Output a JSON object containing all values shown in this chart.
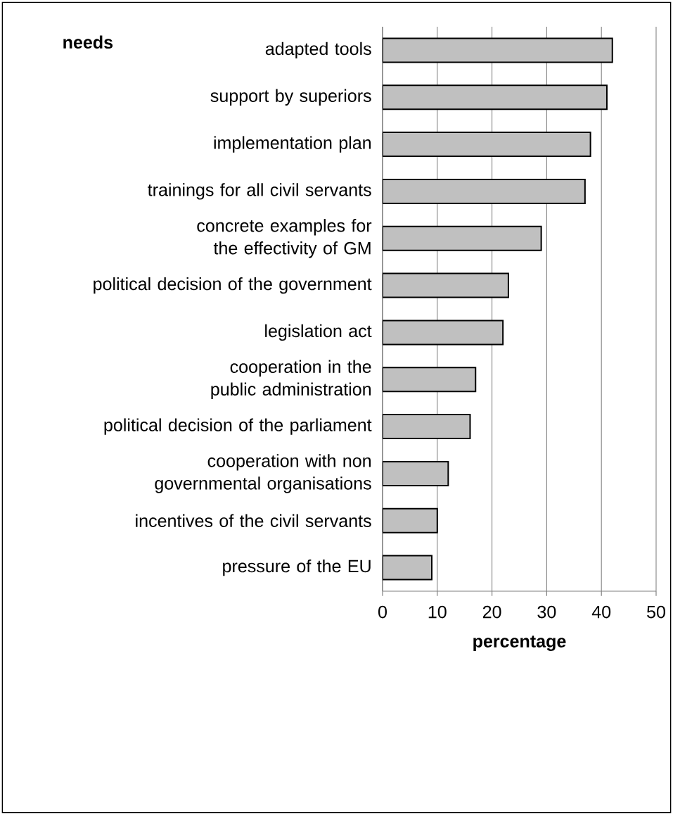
{
  "chart_data": {
    "type": "bar",
    "orientation": "horizontal",
    "ylabel": "needs",
    "xlabel": "percentage",
    "categories": [
      "adapted tools",
      "support by superiors",
      "implementation plan",
      "trainings for all civil servants",
      "concrete examples for the effectivity of GM",
      "political decision of the government",
      "legislation act",
      "cooperation in the public administration",
      "political decision of the parliament",
      "cooperation with non governmental organisations",
      "incentives of the civil servants",
      "pressure of the EU"
    ],
    "values": [
      42,
      41,
      38,
      37,
      29,
      23,
      22,
      17,
      16,
      12,
      10,
      9
    ],
    "color": "#c0c0c0",
    "xlim": [
      0,
      50
    ],
    "xticks": [
      0,
      10,
      20,
      30,
      40,
      50
    ],
    "grid": "x"
  }
}
